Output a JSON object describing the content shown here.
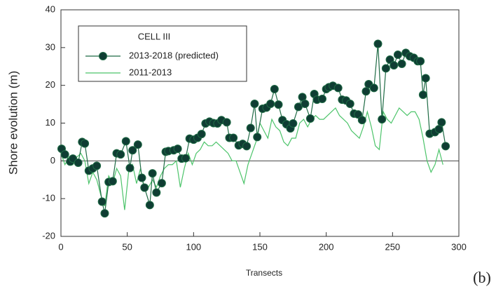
{
  "chart_data": {
    "type": "line",
    "xlabel": "Transects",
    "ylabel": "Shore evolution (m)",
    "panel_label": "(b)",
    "legend_title": "CELL III",
    "legend_position": "upper left",
    "xlim": [
      0,
      300
    ],
    "xticks": [
      0,
      50,
      100,
      150,
      200,
      250,
      300
    ],
    "ylim": [
      -20,
      40
    ],
    "yticks": [
      -20,
      -10,
      0,
      10,
      20,
      30,
      40
    ],
    "series": [
      {
        "name": "2013-2018 (predicted)",
        "color": "#1f6b45",
        "marker": "circle",
        "marker_color": "#0f3d33",
        "x": [
          0.5,
          3,
          7,
          9,
          13,
          16,
          18,
          21,
          24,
          27,
          31,
          33,
          36,
          39,
          42,
          45,
          49,
          52,
          54,
          58,
          61,
          63,
          67,
          69,
          72,
          76,
          79,
          81,
          85,
          88,
          91,
          94,
          97,
          100,
          103,
          106,
          109,
          112,
          115,
          118,
          121,
          125,
          127,
          130,
          134,
          137,
          140,
          143,
          146,
          148,
          152,
          155,
          158,
          161,
          164,
          167,
          170,
          173,
          175,
          179,
          182,
          184,
          188,
          191,
          193,
          197,
          200,
          202,
          205,
          209,
          212,
          215,
          218,
          221,
          224,
          227,
          230,
          232,
          236,
          239,
          242,
          245,
          248,
          251,
          254,
          257,
          260,
          263,
          266,
          269,
          271,
          273,
          275,
          278,
          282,
          285,
          287,
          290
        ],
        "values": [
          3.2,
          1.7,
          -0.2,
          0.6,
          -0.5,
          5,
          4.6,
          -2.6,
          -2,
          -1.3,
          -10.8,
          -13.9,
          -5.6,
          -5.4,
          2,
          1.7,
          5.2,
          -1.9,
          2.8,
          4.3,
          -4.5,
          -7.1,
          -11.7,
          -3.3,
          -8.4,
          -5.9,
          2.4,
          2.6,
          2.8,
          3.2,
          0.6,
          0.7,
          5.9,
          5.6,
          6.1,
          7.1,
          9.9,
          10.4,
          10,
          9.9,
          10.8,
          10.2,
          6.1,
          6.1,
          4.1,
          4.5,
          3.9,
          8.7,
          15.1,
          6.3,
          13.8,
          14.1,
          15.1,
          19,
          14.9,
          10.8,
          9.7,
          8.6,
          9.9,
          14.3,
          16.9,
          15.1,
          11.2,
          17.7,
          16.2,
          16.4,
          19,
          19.5,
          19.9,
          19.3,
          16.2,
          16,
          15.1,
          12.5,
          12.3,
          10.8,
          18.4,
          20.3,
          19.3,
          31,
          11,
          24.5,
          26.8,
          25.3,
          28.1,
          25.7,
          28.6,
          27.7,
          27.3,
          26.4,
          26.4,
          17.5,
          21.9,
          7.2,
          7.6,
          8.4,
          10.2,
          3.9
        ]
      },
      {
        "name": "2011-2013",
        "color": "#4cc46a",
        "x": [
          0,
          3,
          6,
          9,
          12,
          15,
          18,
          21,
          24,
          27,
          30,
          33,
          36,
          39,
          42,
          45,
          48,
          51,
          54,
          57,
          60,
          63,
          66,
          69,
          72,
          75,
          78,
          81,
          84,
          87,
          90,
          93,
          96,
          99,
          102,
          105,
          108,
          111,
          114,
          117,
          120,
          123,
          126,
          129,
          132,
          135,
          138,
          141,
          144,
          147,
          150,
          153,
          156,
          159,
          162,
          165,
          168,
          171,
          174,
          177,
          180,
          183,
          186,
          189,
          192,
          195,
          198,
          201,
          204,
          207,
          210,
          213,
          216,
          219,
          222,
          225,
          228,
          231,
          234,
          237,
          240,
          243,
          246,
          249,
          252,
          255,
          258,
          261,
          264,
          267,
          270,
          273,
          276,
          279,
          282,
          285,
          288
        ],
        "values": [
          2,
          -1,
          1,
          -1,
          1,
          2,
          0,
          -6,
          -3,
          -5,
          -9,
          -12,
          -4,
          -6,
          -2,
          -4,
          -13,
          -3,
          -1,
          -6,
          -2,
          -8,
          -7,
          -5,
          -7,
          -4,
          -2,
          -1,
          -1,
          0,
          -7,
          -2,
          2,
          -1,
          2,
          3,
          5,
          4,
          4,
          5,
          4,
          3,
          2,
          0,
          0,
          -3,
          -6,
          -1,
          2,
          5,
          10,
          8,
          6,
          11,
          9,
          8,
          5,
          4,
          6,
          6,
          10,
          11,
          9,
          11,
          12,
          11,
          11,
          12,
          13,
          14,
          12,
          11,
          10,
          8,
          7,
          6,
          9,
          13,
          9,
          4,
          3,
          13,
          11,
          10,
          12,
          14,
          13,
          12,
          13,
          13,
          11,
          6,
          0,
          -3,
          -1,
          3,
          -1
        ]
      }
    ]
  }
}
